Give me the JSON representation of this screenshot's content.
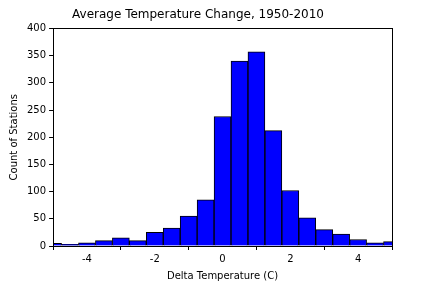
{
  "chart_data": {
    "type": "histogram",
    "title": "Average Temperature Change, 1950-2010",
    "x_label": "Delta Temperature (C)",
    "y_label": "Count of Stations",
    "bins": [
      -5.25,
      -4.75,
      -4.25,
      -3.75,
      -3.25,
      -2.75,
      -2.25,
      -1.75,
      -1.25,
      -0.75,
      -0.25,
      0.25,
      0.75,
      1.25,
      1.75,
      2.25,
      2.75,
      3.25,
      3.75,
      4.25,
      4.75,
      5.25
    ],
    "values": [
      5,
      3,
      6,
      10,
      15,
      10,
      25,
      33,
      55,
      85,
      238,
      340,
      357,
      212,
      102,
      52,
      30,
      22,
      12,
      6,
      8
    ],
    "color": "#0000ff",
    "xlim": [
      -5,
      5
    ],
    "xticks": [
      -4,
      -2,
      0,
      2,
      4
    ],
    "ylim": [
      0,
      400
    ],
    "yticks": [
      0,
      50,
      100,
      150,
      200,
      250,
      300,
      350,
      400
    ],
    "grid": false
  }
}
